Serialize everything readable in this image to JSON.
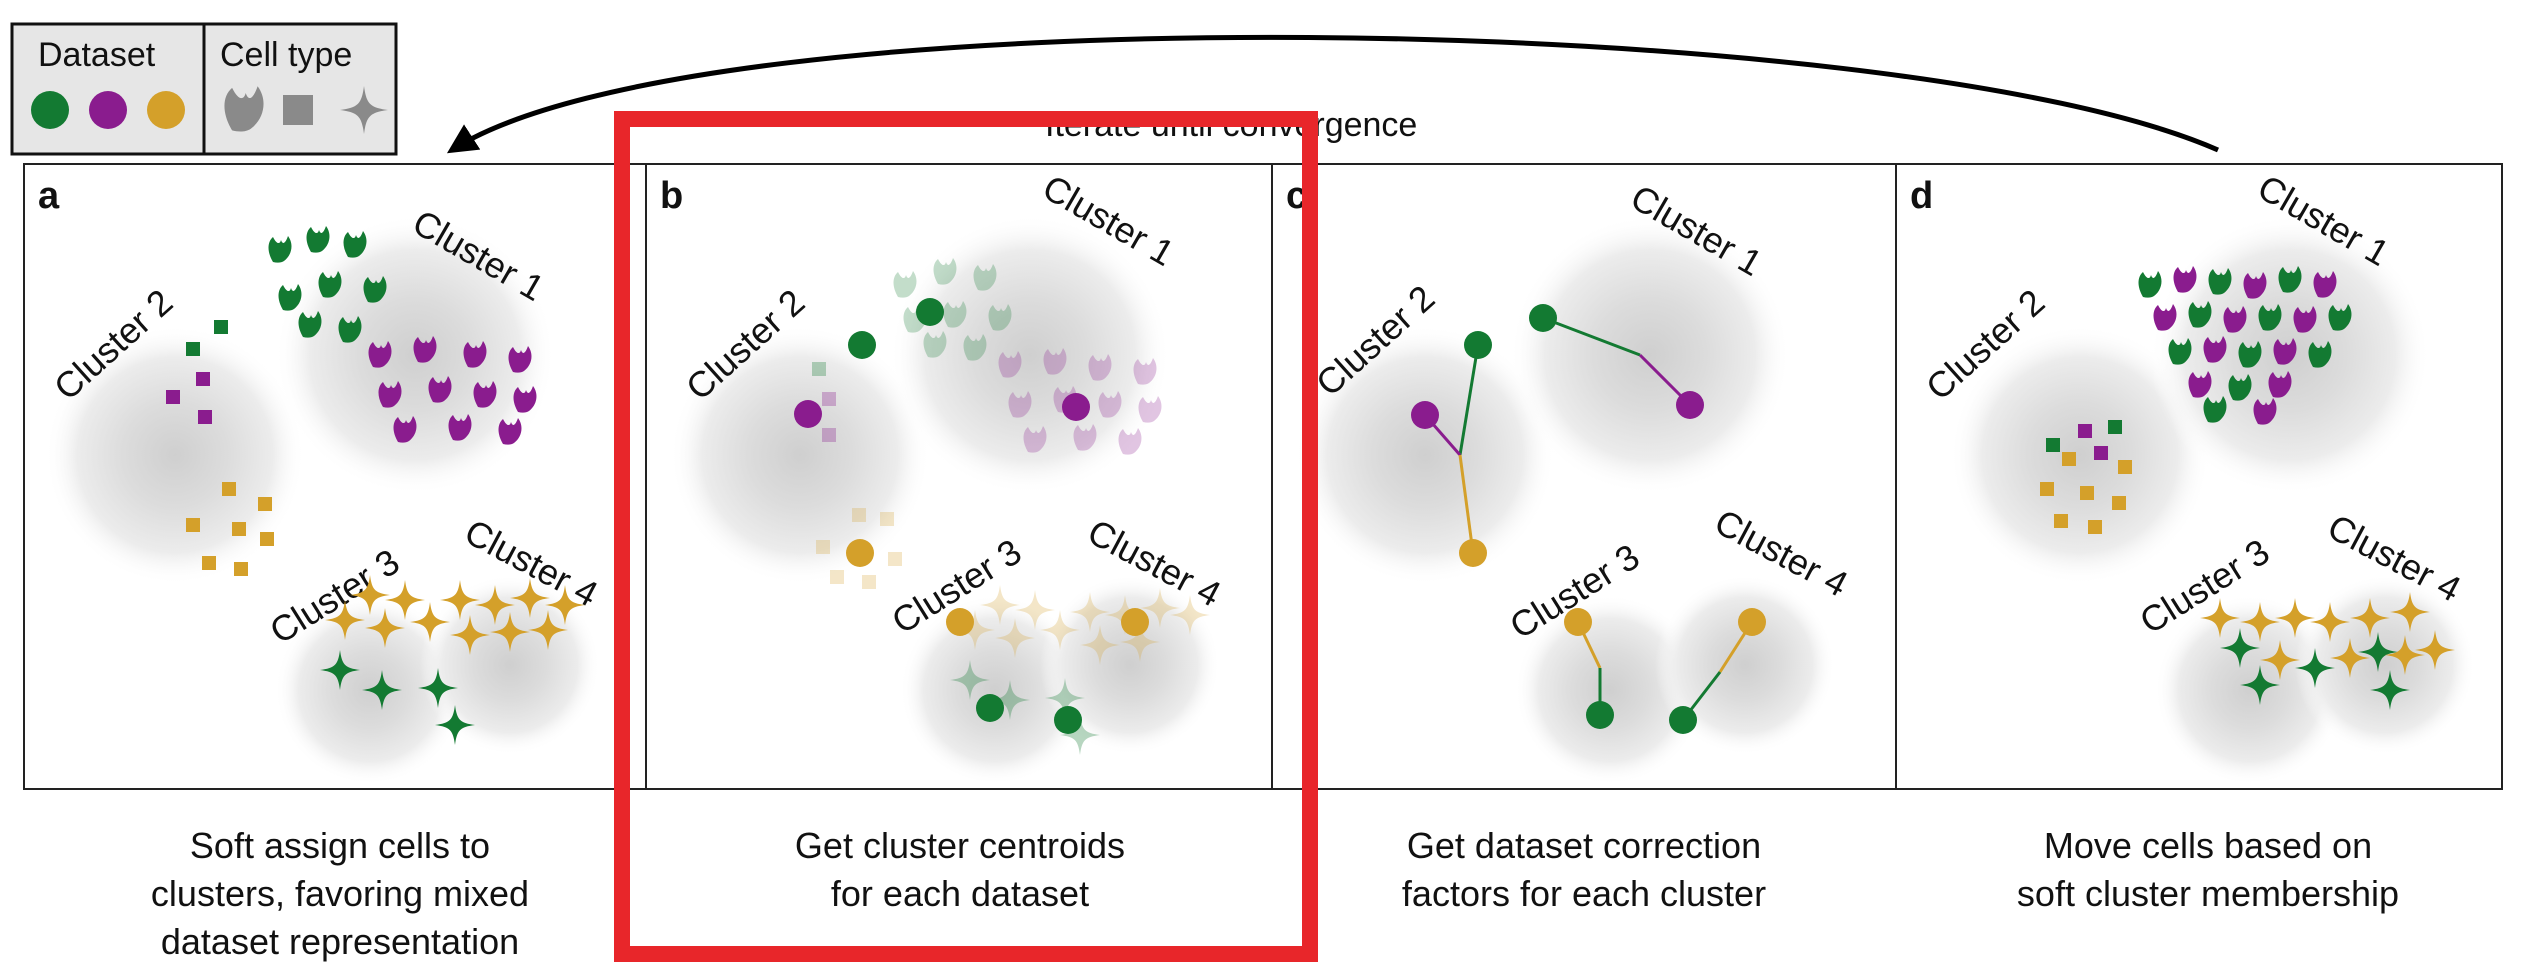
{
  "legend": {
    "dataset_title": "Dataset",
    "celltype_title": "Cell type"
  },
  "loop_label": "Iterate until convergence",
  "panels": [
    {
      "letter": "a",
      "clusters": [
        "Cluster 1",
        "Cluster 2",
        "Cluster 3",
        "Cluster 4"
      ],
      "caption": [
        "Soft assign cells to",
        "clusters, favoring mixed",
        "dataset representation"
      ]
    },
    {
      "letter": "b",
      "clusters": [
        "Cluster 1",
        "Cluster 2",
        "Cluster 3",
        "Cluster 4"
      ],
      "caption": [
        "Get cluster centroids",
        "for each dataset"
      ]
    },
    {
      "letter": "c",
      "clusters": [
        "Cluster 1",
        "Cluster 2",
        "Cluster 3",
        "Cluster 4"
      ],
      "caption": [
        "Get dataset correction",
        "factors for each cluster"
      ]
    },
    {
      "letter": "d",
      "clusters": [
        "Cluster 1",
        "Cluster 2",
        "Cluster 3",
        "Cluster 4"
      ],
      "caption": [
        "Move cells based on",
        "soft cluster membership"
      ]
    }
  ],
  "colors": {
    "green": "#137a32",
    "purple": "#8a1c8e",
    "gold": "#d4a02a",
    "gray": "#8a8a8a",
    "highlight": "#e8262a"
  },
  "icons": [
    "tuft-cell-icon",
    "square-cell-icon",
    "star-cell-icon"
  ]
}
